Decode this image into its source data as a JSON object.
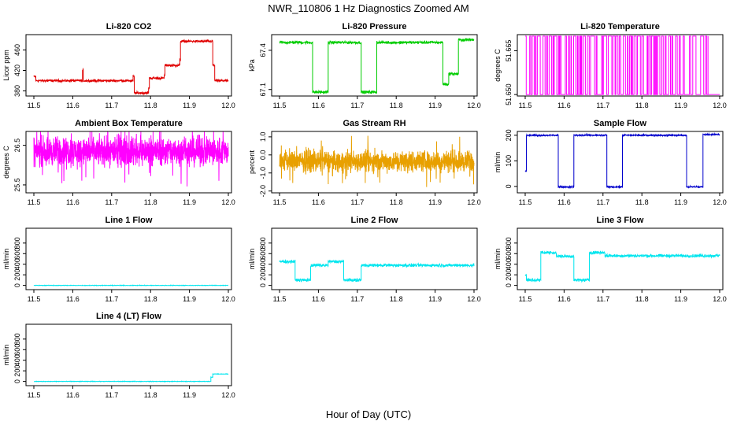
{
  "figure": {
    "title": "NWR_110806  1 Hz Diagnostics Zoomed AM",
    "xlabel": "Hour of Day (UTC)"
  },
  "chart_data": [
    {
      "type": "line",
      "title": "Li-820 CO2",
      "ylabel": "Licor ppm",
      "color": "#e00000",
      "xlim": [
        11.5,
        12.0
      ],
      "ylim": [
        370,
        490
      ],
      "x_ticks": [
        "11.5",
        "11.6",
        "11.7",
        "11.8",
        "11.9",
        "12.0"
      ],
      "y_ticks": [
        {
          "v": 380,
          "label": "380"
        },
        {
          "v": 420,
          "label": "420"
        },
        {
          "v": 460,
          "label": "460"
        }
      ],
      "series": [
        {
          "steps": [
            [
              11.5,
              11.505,
              408
            ],
            [
              11.505,
              11.625,
              400
            ],
            [
              11.625,
              11.627,
              420
            ],
            [
              11.627,
              11.755,
              400
            ],
            [
              11.755,
              11.758,
              408
            ],
            [
              11.758,
              11.795,
              376
            ],
            [
              11.795,
              11.797,
              385
            ],
            [
              11.797,
              11.835,
              405
            ],
            [
              11.835,
              11.837,
              410
            ],
            [
              11.837,
              11.875,
              430
            ],
            [
              11.875,
              11.877,
              440
            ],
            [
              11.877,
              11.96,
              477
            ],
            [
              11.96,
              11.965,
              430
            ],
            [
              11.965,
              12.0,
              400
            ]
          ],
          "noise": 1.5
        }
      ]
    },
    {
      "type": "line",
      "title": "Li-820 Pressure",
      "ylabel": "kPa",
      "color": "#00cc00",
      "xlim": [
        11.5,
        12.0
      ],
      "ylim": [
        67.05,
        67.52
      ],
      "x_ticks": [
        "11.5",
        "11.6",
        "11.7",
        "11.8",
        "11.9",
        "12.0"
      ],
      "y_ticks": [
        {
          "v": 67.1,
          "label": "67.1"
        },
        {
          "v": 67.4,
          "label": "67.4"
        }
      ],
      "series": [
        {
          "steps": [
            [
              11.5,
              11.585,
              67.46
            ],
            [
              11.585,
              11.625,
              67.08
            ],
            [
              11.625,
              11.71,
              67.46
            ],
            [
              11.71,
              11.75,
              67.08
            ],
            [
              11.75,
              11.92,
              67.46
            ],
            [
              11.92,
              11.935,
              67.14
            ],
            [
              11.935,
              11.96,
              67.22
            ],
            [
              11.96,
              12.0,
              67.48
            ]
          ],
          "noise": 0.007
        }
      ]
    },
    {
      "type": "line",
      "title": "Li-820 Temperature",
      "ylabel": "degrees C",
      "color": "#ff00ff",
      "xlim": [
        11.5,
        12.0
      ],
      "ylim": [
        51.6495,
        51.6705
      ],
      "x_ticks": [
        "11.5",
        "11.6",
        "11.7",
        "11.8",
        "11.9",
        "12.0"
      ],
      "y_ticks": [
        {
          "v": 51.65,
          "label": "51.650"
        },
        {
          "v": 51.665,
          "label": "51.665"
        }
      ],
      "series": [
        {
          "binary": [
            51.65,
            51.67
          ],
          "flat_from": 11.97
        }
      ]
    },
    {
      "type": "line",
      "title": "Ambient Box Temperature",
      "ylabel": "degrees C",
      "color": "#ff00ff",
      "xlim": [
        11.5,
        12.0
      ],
      "ylim": [
        25.3,
        26.85
      ],
      "x_ticks": [
        "11.5",
        "11.6",
        "11.7",
        "11.8",
        "11.9",
        "12.0"
      ],
      "y_ticks": [
        {
          "v": 25.5,
          "label": "25.5"
        },
        {
          "v": 26.5,
          "label": "26.5"
        }
      ],
      "series": [
        {
          "mean": 26.35,
          "noise": 0.22
        }
      ]
    },
    {
      "type": "line",
      "title": "Gas Stream RH",
      "ylabel": "percent",
      "color": "#e8a000",
      "xlim": [
        11.5,
        12.0
      ],
      "ylim": [
        -2.1,
        1.3
      ],
      "x_ticks": [
        "11.5",
        "11.6",
        "11.7",
        "11.8",
        "11.9",
        "12.0"
      ],
      "y_ticks": [
        {
          "v": -2,
          "label": "-2.0"
        },
        {
          "v": -1,
          "label": "-1.0"
        },
        {
          "v": 0,
          "label": "0.0"
        },
        {
          "v": 1,
          "label": "1.0"
        }
      ],
      "series": [
        {
          "mean": -0.35,
          "noise": 0.35
        }
      ]
    },
    {
      "type": "line",
      "title": "Sample Flow",
      "ylabel": "ml/min",
      "color": "#0000cc",
      "xlim": [
        11.5,
        12.0
      ],
      "ylim": [
        -25,
        215
      ],
      "x_ticks": [
        "11.5",
        "11.6",
        "11.7",
        "11.8",
        "11.9",
        "12.0"
      ],
      "y_ticks": [
        {
          "v": 0,
          "label": "0"
        },
        {
          "v": 100,
          "label": "100"
        },
        {
          "v": 200,
          "label": "200"
        }
      ],
      "series": [
        {
          "steps": [
            [
              11.5,
              11.503,
              60
            ],
            [
              11.503,
              11.585,
              200
            ],
            [
              11.585,
              11.625,
              -2
            ],
            [
              11.625,
              11.71,
              200
            ],
            [
              11.71,
              11.75,
              -2
            ],
            [
              11.75,
              11.915,
              200
            ],
            [
              11.915,
              11.957,
              -2
            ],
            [
              11.957,
              12.0,
              203
            ]
          ],
          "noise": 2
        }
      ]
    },
    {
      "type": "line",
      "title": "Line 1 Flow",
      "ylabel": "ml/min",
      "color": "#00e5ee",
      "xlim": [
        11.5,
        12.0
      ],
      "ylim": [
        -80,
        1080
      ],
      "x_ticks": [
        "11.5",
        "11.6",
        "11.7",
        "11.8",
        "11.9",
        "12.0"
      ],
      "y_ticks": [
        {
          "v": 0,
          "label": "0"
        },
        {
          "v": 200,
          "label": "200"
        },
        {
          "v": 400,
          "label": "400"
        },
        {
          "v": 600,
          "label": "600"
        },
        {
          "v": 800,
          "label": "800"
        }
      ],
      "series": [
        {
          "steps": [
            [
              11.5,
              12.0,
              0
            ]
          ],
          "noise": 3
        }
      ]
    },
    {
      "type": "line",
      "title": "Line 2 Flow",
      "ylabel": "ml/min",
      "color": "#00e5ee",
      "xlim": [
        11.5,
        12.0
      ],
      "ylim": [
        -80,
        1080
      ],
      "x_ticks": [
        "11.5",
        "11.6",
        "11.7",
        "11.8",
        "11.9",
        "12.0"
      ],
      "y_ticks": [
        {
          "v": 0,
          "label": "0"
        },
        {
          "v": 200,
          "label": "200"
        },
        {
          "v": 400,
          "label": "400"
        },
        {
          "v": 600,
          "label": "600"
        },
        {
          "v": 800,
          "label": "800"
        }
      ],
      "series": [
        {
          "steps": [
            [
              11.5,
              11.54,
              450
            ],
            [
              11.54,
              11.58,
              100
            ],
            [
              11.58,
              11.625,
              380
            ],
            [
              11.625,
              11.665,
              450
            ],
            [
              11.665,
              11.71,
              100
            ],
            [
              11.71,
              12.0,
              380
            ]
          ],
          "noise": 18
        }
      ]
    },
    {
      "type": "line",
      "title": "Line 3 Flow",
      "ylabel": "ml/min",
      "color": "#00e5ee",
      "xlim": [
        11.5,
        12.0
      ],
      "ylim": [
        -80,
        1080
      ],
      "x_ticks": [
        "11.5",
        "11.6",
        "11.7",
        "11.8",
        "11.9",
        "12.0"
      ],
      "y_ticks": [
        {
          "v": 0,
          "label": "0"
        },
        {
          "v": 200,
          "label": "200"
        },
        {
          "v": 400,
          "label": "400"
        },
        {
          "v": 600,
          "label": "600"
        },
        {
          "v": 800,
          "label": "800"
        }
      ],
      "series": [
        {
          "steps": [
            [
              11.5,
              11.503,
              200
            ],
            [
              11.503,
              11.54,
              100
            ],
            [
              11.54,
              11.58,
              620
            ],
            [
              11.58,
              11.625,
              550
            ],
            [
              11.625,
              11.665,
              100
            ],
            [
              11.665,
              11.705,
              620
            ],
            [
              11.705,
              12.0,
              560
            ]
          ],
          "noise": 18
        }
      ]
    },
    {
      "type": "line",
      "title": "Line 4 (LT) Flow",
      "ylabel": "ml/min",
      "color": "#00e5ee",
      "xlim": [
        11.5,
        12.0
      ],
      "ylim": [
        -80,
        1080
      ],
      "x_ticks": [
        "11.5",
        "11.6",
        "11.7",
        "11.8",
        "11.9",
        "12.0"
      ],
      "y_ticks": [
        {
          "v": 0,
          "label": "0"
        },
        {
          "v": 200,
          "label": "200"
        },
        {
          "v": 400,
          "label": "400"
        },
        {
          "v": 600,
          "label": "600"
        },
        {
          "v": 800,
          "label": "800"
        }
      ],
      "series": [
        {
          "steps": [
            [
              11.5,
              11.955,
              0
            ],
            [
              11.955,
              11.96,
              80
            ],
            [
              11.96,
              12.0,
              140
            ]
          ],
          "noise": 3
        }
      ]
    }
  ]
}
